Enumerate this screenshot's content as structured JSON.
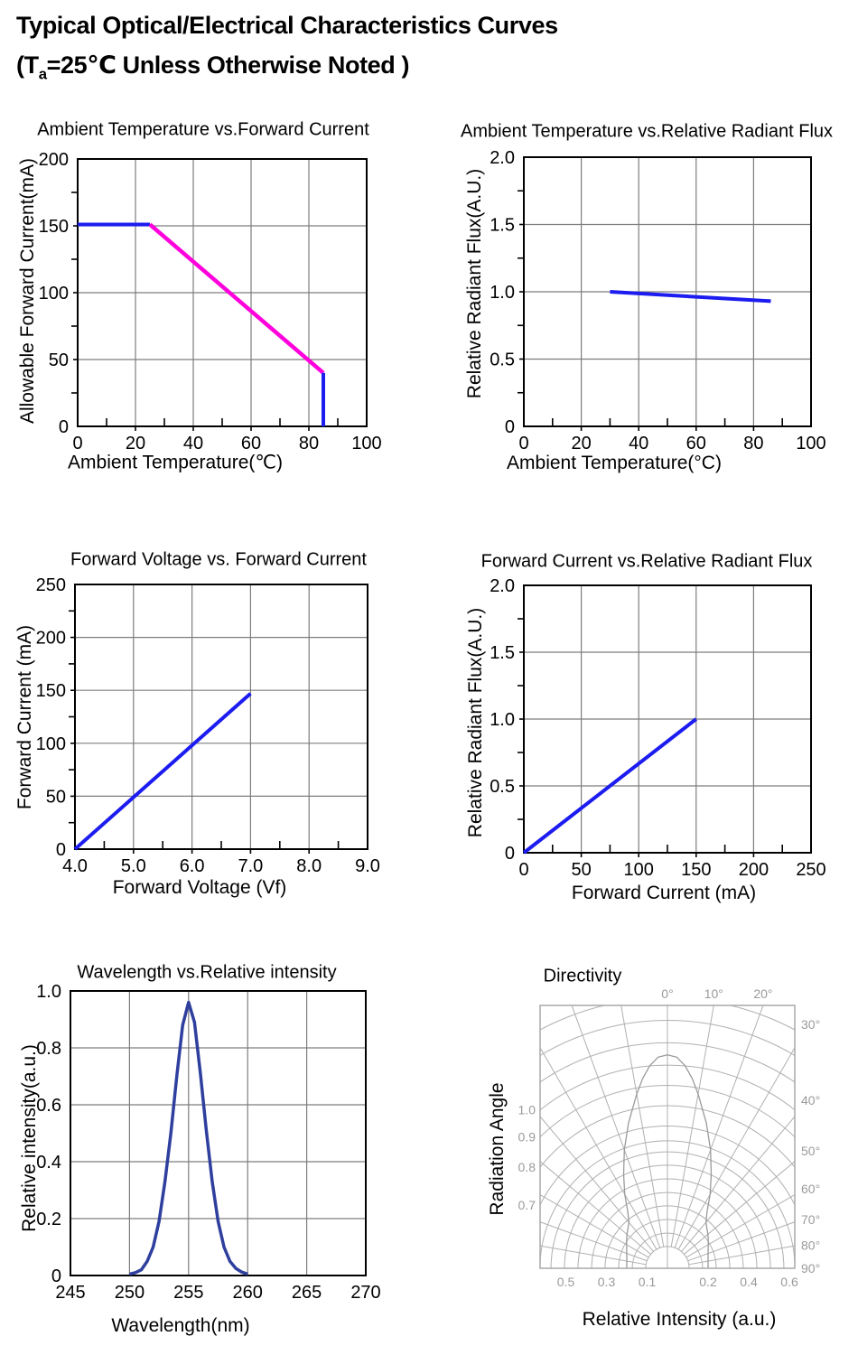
{
  "page": {
    "title_line1": "Typical Optical/Electrical Characteristics Curves",
    "title_line2": {
      "pre": "(T",
      "sub": "a",
      "post": "=25℃ Unless Otherwise Noted )"
    }
  },
  "colors": {
    "curve_blue": "#1c1cf0",
    "curve_magenta": "#ff00dd",
    "spectrum_blue": "#2e3f9e",
    "grid_gray": "#7d7d7d",
    "axis_black": "#000000",
    "polar_grid_gray": "#b0b0b0",
    "polar_label_gray": "#9a9a9a"
  },
  "chart_data": [
    {
      "type": "line",
      "title": "Ambient Temperature vs.Forward Current",
      "xlabel": "Ambient Temperature(℃)",
      "ylabel": "Allowable Forward Current(mA)",
      "xlim": [
        0,
        100
      ],
      "ylim": [
        0,
        200
      ],
      "xticks": [
        [
          0,
          "0"
        ],
        [
          20,
          "20"
        ],
        [
          40,
          "40"
        ],
        [
          60,
          "60"
        ],
        [
          80,
          "80"
        ],
        [
          100,
          "100"
        ]
      ],
      "yticks": [
        [
          0,
          "0"
        ],
        [
          50,
          "50"
        ],
        [
          100,
          "100"
        ],
        [
          150,
          "150"
        ],
        [
          200,
          "200"
        ]
      ],
      "xminor": [
        10,
        30,
        50,
        70,
        90
      ],
      "yminor": [
        25,
        75,
        125,
        175
      ],
      "grid_x": [
        20,
        40,
        60,
        80
      ],
      "grid_y": [
        50,
        100,
        150
      ],
      "series": [
        {
          "name": "max-current-flat",
          "color": "#1c1cf0",
          "width": 4,
          "points": [
            [
              0,
              151
            ],
            [
              25,
              151
            ]
          ]
        },
        {
          "name": "derating-slope",
          "color": "#ff00dd",
          "width": 4.5,
          "points": [
            [
              25,
              151
            ],
            [
              85,
              40
            ]
          ]
        },
        {
          "name": "cutoff-at-85C",
          "color": "#1c1cf0",
          "width": 4,
          "points": [
            [
              85,
              40
            ],
            [
              85,
              0
            ]
          ]
        }
      ]
    },
    {
      "type": "line",
      "title": "Ambient Temperature vs.Relative Radiant Flux",
      "xlabel": "Ambient Temperature(°C)",
      "ylabel": "Relative Radiant Flux(A.U.)",
      "xlim": [
        0,
        100
      ],
      "ylim": [
        0,
        2
      ],
      "xticks": [
        [
          0,
          "0"
        ],
        [
          20,
          "20"
        ],
        [
          40,
          "40"
        ],
        [
          60,
          "60"
        ],
        [
          80,
          "80"
        ],
        [
          100,
          "100"
        ]
      ],
      "yticks": [
        [
          0,
          "0"
        ],
        [
          0.5,
          "0.5"
        ],
        [
          1,
          "1.0"
        ],
        [
          1.5,
          "1.5"
        ],
        [
          2,
          "2.0"
        ]
      ],
      "xminor": [
        10,
        30,
        50,
        70,
        90
      ],
      "yminor": [
        0.25,
        0.75,
        1.25,
        1.75
      ],
      "grid_x": [
        20,
        40,
        60,
        80
      ],
      "grid_y": [
        0.5,
        1,
        1.5
      ],
      "series": [
        {
          "name": "flux-vs-temp",
          "color": "#1c1cf0",
          "width": 4,
          "points": [
            [
              30,
              1.0
            ],
            [
              86,
              0.93
            ]
          ]
        }
      ]
    },
    {
      "type": "line",
      "title": "Forward Voltage vs. Forward Current",
      "xlabel": "Forward Voltage (Vf)",
      "ylabel": "Forward Current (mA)",
      "xlim": [
        4,
        9
      ],
      "ylim": [
        0,
        250
      ],
      "xticks": [
        [
          4,
          "4.0"
        ],
        [
          5,
          "5.0"
        ],
        [
          6,
          "6.0"
        ],
        [
          7,
          "7.0"
        ],
        [
          8,
          "8.0"
        ],
        [
          9,
          "9.0"
        ]
      ],
      "yticks": [
        [
          0,
          "0"
        ],
        [
          50,
          "50"
        ],
        [
          100,
          "100"
        ],
        [
          150,
          "150"
        ],
        [
          200,
          "200"
        ],
        [
          250,
          "250"
        ]
      ],
      "xminor": [
        4.5,
        5.5,
        6.5,
        7.5,
        8.5
      ],
      "yminor": [
        25,
        75,
        125,
        175,
        225
      ],
      "grid_x": [
        5,
        6,
        7,
        8
      ],
      "grid_y": [
        50,
        100,
        150,
        200
      ],
      "series": [
        {
          "name": "vf-if-curve",
          "color": "#1c1cf0",
          "width": 4,
          "points": [
            [
              4,
              0
            ],
            [
              7,
              147
            ]
          ]
        }
      ]
    },
    {
      "type": "line",
      "title": "Forward Current vs.Relative Radiant Flux",
      "xlabel": "Forward Current (mA)",
      "ylabel": "Relative Radiant Flux(A.U.)",
      "xlim": [
        0,
        250
      ],
      "ylim": [
        0,
        2
      ],
      "xticks": [
        [
          0,
          "0"
        ],
        [
          50,
          "50"
        ],
        [
          100,
          "100"
        ],
        [
          150,
          "150"
        ],
        [
          200,
          "200"
        ],
        [
          250,
          "250"
        ]
      ],
      "yticks": [
        [
          0,
          "0"
        ],
        [
          0.5,
          "0.5"
        ],
        [
          1,
          "1.0"
        ],
        [
          1.5,
          "1.5"
        ],
        [
          2,
          "2.0"
        ]
      ],
      "xminor": [
        25,
        75,
        125,
        175,
        225
      ],
      "yminor": [
        0.25,
        0.75,
        1.25,
        1.75
      ],
      "grid_x": [
        50,
        100,
        150,
        200
      ],
      "grid_y": [
        0.5,
        1,
        1.5
      ],
      "series": [
        {
          "name": "flux-vs-current",
          "color": "#1c1cf0",
          "width": 4,
          "points": [
            [
              0,
              0
            ],
            [
              150,
              1.0
            ]
          ]
        }
      ]
    },
    {
      "type": "line",
      "title": "Wavelength vs.Relative intensity",
      "xlabel": "Wavelength(nm)",
      "ylabel": "Relative intensity(a.u.)",
      "xlim": [
        245,
        270
      ],
      "ylim": [
        0,
        1
      ],
      "xticks": [
        [
          245,
          "245"
        ],
        [
          250,
          "250"
        ],
        [
          255,
          "255"
        ],
        [
          260,
          "260"
        ],
        [
          265,
          "265"
        ],
        [
          270,
          "270"
        ]
      ],
      "yticks": [
        [
          0,
          "0"
        ],
        [
          0.2,
          "0.2"
        ],
        [
          0.4,
          "0.4"
        ],
        [
          0.6,
          "0.6"
        ],
        [
          0.8,
          "0.8"
        ],
        [
          1,
          "1.0"
        ]
      ],
      "xminor": [],
      "yminor": [],
      "grid_x": [
        250,
        255,
        260,
        265
      ],
      "grid_y": [
        0.2,
        0.4,
        0.6,
        0.8
      ],
      "series": [
        {
          "name": "emission-spectrum",
          "color": "#2e3f9e",
          "width": 3.5,
          "points": [
            [
              250,
              0.005
            ],
            [
              250.5,
              0.01
            ],
            [
              251,
              0.02
            ],
            [
              251.5,
              0.05
            ],
            [
              252,
              0.1
            ],
            [
              252.5,
              0.19
            ],
            [
              253,
              0.33
            ],
            [
              253.5,
              0.5
            ],
            [
              254,
              0.7
            ],
            [
              254.5,
              0.88
            ],
            [
              255,
              0.96
            ],
            [
              255.5,
              0.89
            ],
            [
              256,
              0.71
            ],
            [
              256.5,
              0.51
            ],
            [
              257,
              0.33
            ],
            [
              257.5,
              0.19
            ],
            [
              258,
              0.1
            ],
            [
              258.5,
              0.05
            ],
            [
              259,
              0.025
            ],
            [
              259.5,
              0.012
            ],
            [
              260,
              0.005
            ]
          ]
        }
      ]
    },
    {
      "type": "polar",
      "title": "Directivity",
      "xlabel": "Relative Intensity (a.u.)",
      "ylabel": "Radiation Angle",
      "rings": [
        0.107,
        0.173,
        0.24,
        0.307,
        0.373,
        0.44,
        0.507,
        0.573,
        0.627,
        0.7,
        0.8,
        0.9,
        1.0,
        1.11,
        1.22,
        1.33
      ],
      "spokes_deg": [
        -80,
        -70,
        -60,
        -50,
        -40,
        -30,
        -20,
        -10,
        0,
        10,
        20,
        30,
        40,
        50,
        60,
        70,
        80
      ],
      "angle_labels_top": [
        [
          0,
          "0°"
        ],
        [
          10,
          "10°"
        ],
        [
          20,
          "20°"
        ]
      ],
      "angle_labels_right": [
        [
          30,
          "30°"
        ],
        [
          40,
          "40°"
        ],
        [
          50,
          "50°"
        ],
        [
          60,
          "60°"
        ],
        [
          70,
          "70°"
        ],
        [
          80,
          "80°"
        ],
        [
          90,
          "90°"
        ]
      ],
      "radial_labels_left": [
        [
          1.0,
          "1.0"
        ],
        [
          0.9,
          "0.9"
        ],
        [
          0.8,
          "0.8"
        ],
        [
          0.7,
          "0.7"
        ]
      ],
      "radial_labels_bottom_left": [
        [
          0.5,
          "0.5"
        ],
        [
          0.3,
          "0.3"
        ],
        [
          0.1,
          "0.1"
        ]
      ],
      "radial_labels_bottom_right": [
        [
          0.2,
          "0.2"
        ],
        [
          0.4,
          "0.4"
        ],
        [
          0.6,
          "0.6"
        ]
      ],
      "lobe": [
        [
          -90,
          0.2
        ],
        [
          -85,
          0.201
        ],
        [
          -80,
          0.203
        ],
        [
          -75,
          0.207
        ],
        [
          -70,
          0.213
        ],
        [
          -65,
          0.221
        ],
        [
          -60,
          0.232
        ],
        [
          -55,
          0.245
        ],
        [
          -50,
          0.26
        ],
        [
          -45,
          0.275
        ],
        [
          -40,
          0.295
        ],
        [
          -35,
          0.34
        ],
        [
          -30,
          0.42
        ],
        [
          -25,
          0.51
        ],
        [
          -20,
          0.62
        ],
        [
          -15,
          0.74
        ],
        [
          -10,
          0.87
        ],
        [
          -7.5,
          0.94
        ],
        [
          -5,
          1.0
        ],
        [
          -2.5,
          1.04
        ],
        [
          0,
          1.05
        ],
        [
          2.5,
          1.04
        ],
        [
          5,
          1.0
        ],
        [
          7.5,
          0.94
        ],
        [
          10,
          0.87
        ],
        [
          15,
          0.74
        ],
        [
          20,
          0.62
        ],
        [
          25,
          0.51
        ],
        [
          30,
          0.42
        ],
        [
          35,
          0.34
        ],
        [
          40,
          0.295
        ],
        [
          45,
          0.275
        ],
        [
          50,
          0.26
        ],
        [
          55,
          0.245
        ],
        [
          60,
          0.232
        ],
        [
          65,
          0.221
        ],
        [
          70,
          0.213
        ],
        [
          75,
          0.207
        ],
        [
          80,
          0.203
        ],
        [
          85,
          0.201
        ],
        [
          90,
          0.2
        ]
      ]
    }
  ]
}
